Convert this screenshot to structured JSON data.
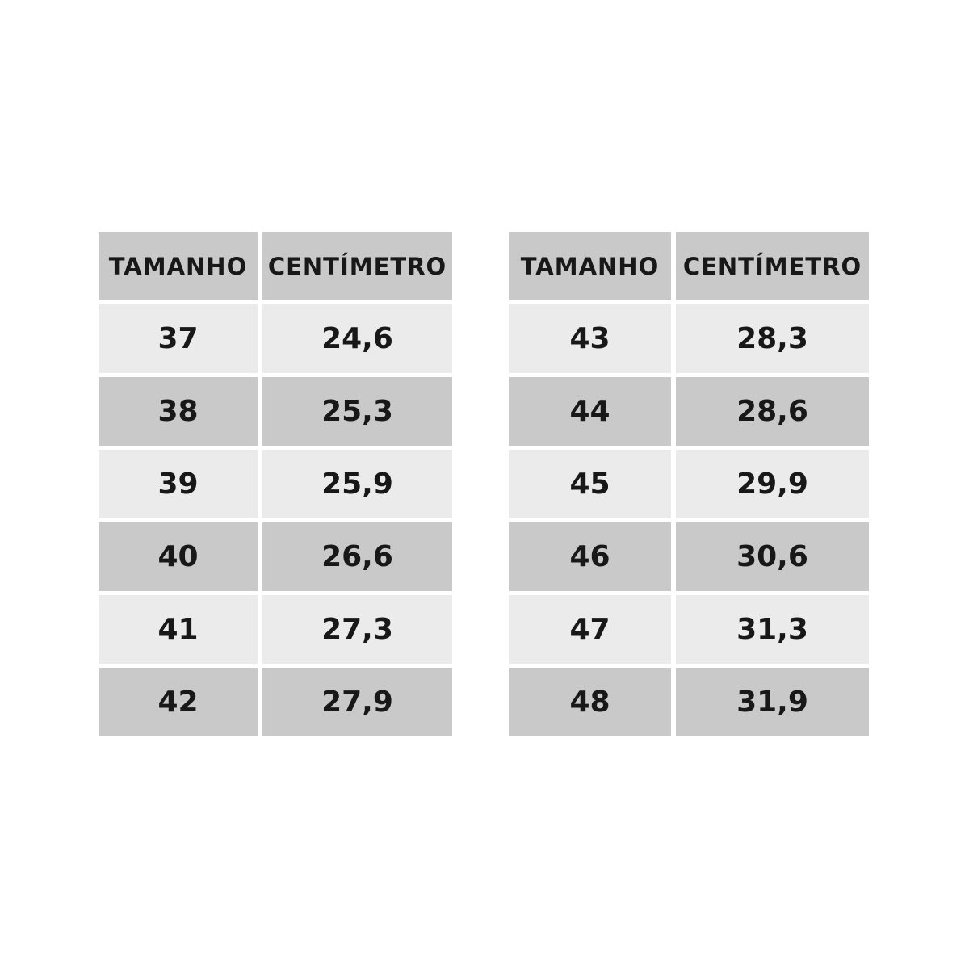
{
  "colors": {
    "page_bg": "#ffffff",
    "header_bg": "#c9c9c9",
    "row_dark_bg": "#c9c9c9",
    "row_light_bg": "#ebebeb",
    "text": "#181818"
  },
  "chart_data": [
    {
      "type": "table",
      "title": "",
      "columns": [
        "TAMANHO",
        "CENTÍMETRO"
      ],
      "rows": [
        [
          "37",
          "24,6"
        ],
        [
          "38",
          "25,3"
        ],
        [
          "39",
          "25,9"
        ],
        [
          "40",
          "26,6"
        ],
        [
          "41",
          "27,3"
        ],
        [
          "42",
          "27,9"
        ]
      ]
    },
    {
      "type": "table",
      "title": "",
      "columns": [
        "TAMANHO",
        "CENTÍMETRO"
      ],
      "rows": [
        [
          "43",
          "28,3"
        ],
        [
          "44",
          "28,6"
        ],
        [
          "45",
          "29,9"
        ],
        [
          "46",
          "30,6"
        ],
        [
          "47",
          "31,3"
        ],
        [
          "48",
          "31,9"
        ]
      ]
    }
  ]
}
